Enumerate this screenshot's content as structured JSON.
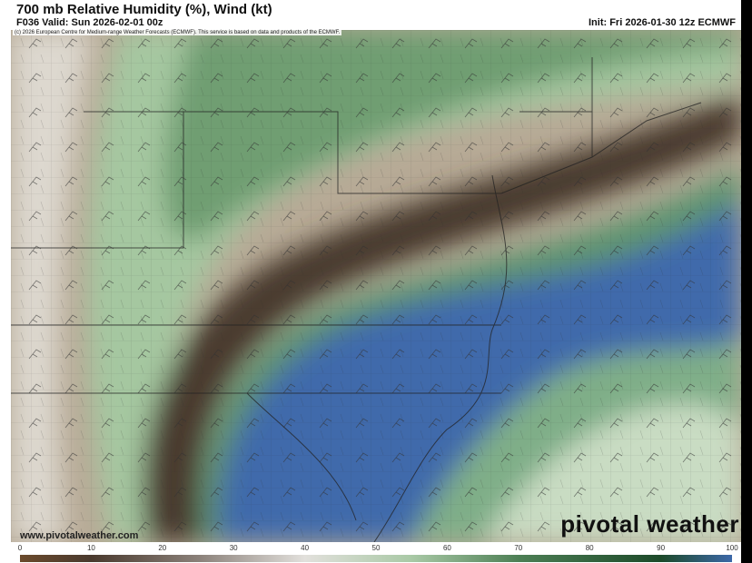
{
  "header": {
    "title": "700 mb Relative Humidity (%), Wind (kt)",
    "valid": "F036 Valid: Sun 2026-02-01 00z",
    "init": "Init: Fri 2026-01-30 12z ECMWF"
  },
  "copyright": "(c) 2026 European Centre for Medium-range Weather Forecasts (ECMWF). This service is based on data and products of the ECMWF.",
  "watermark": {
    "url": "www.pivotalweather.com",
    "logo": "pivotal weather"
  },
  "colorbar": {
    "labels": [
      "0",
      "10",
      "20",
      "30",
      "40",
      "50",
      "60",
      "70",
      "80",
      "90",
      "100"
    ],
    "stops": [
      {
        "value": 0,
        "color": "#6b4a2c"
      },
      {
        "value": 10,
        "color": "#4a3a2e"
      },
      {
        "value": 25,
        "color": "#8a8079"
      },
      {
        "value": 40,
        "color": "#e2e0dc"
      },
      {
        "value": 55,
        "color": "#a9c9a6"
      },
      {
        "value": 70,
        "color": "#4d7f55"
      },
      {
        "value": 90,
        "color": "#1d4a2a"
      },
      {
        "value": 100,
        "color": "#3c68a8"
      }
    ]
  },
  "colors": {
    "dry_brown": "#4a3a2e",
    "tan": "#b7aa96",
    "light": "#ddd8cf",
    "green_light": "#a5c7a0",
    "green_dark": "#2f6a3c",
    "blue": "#3f6bab"
  }
}
